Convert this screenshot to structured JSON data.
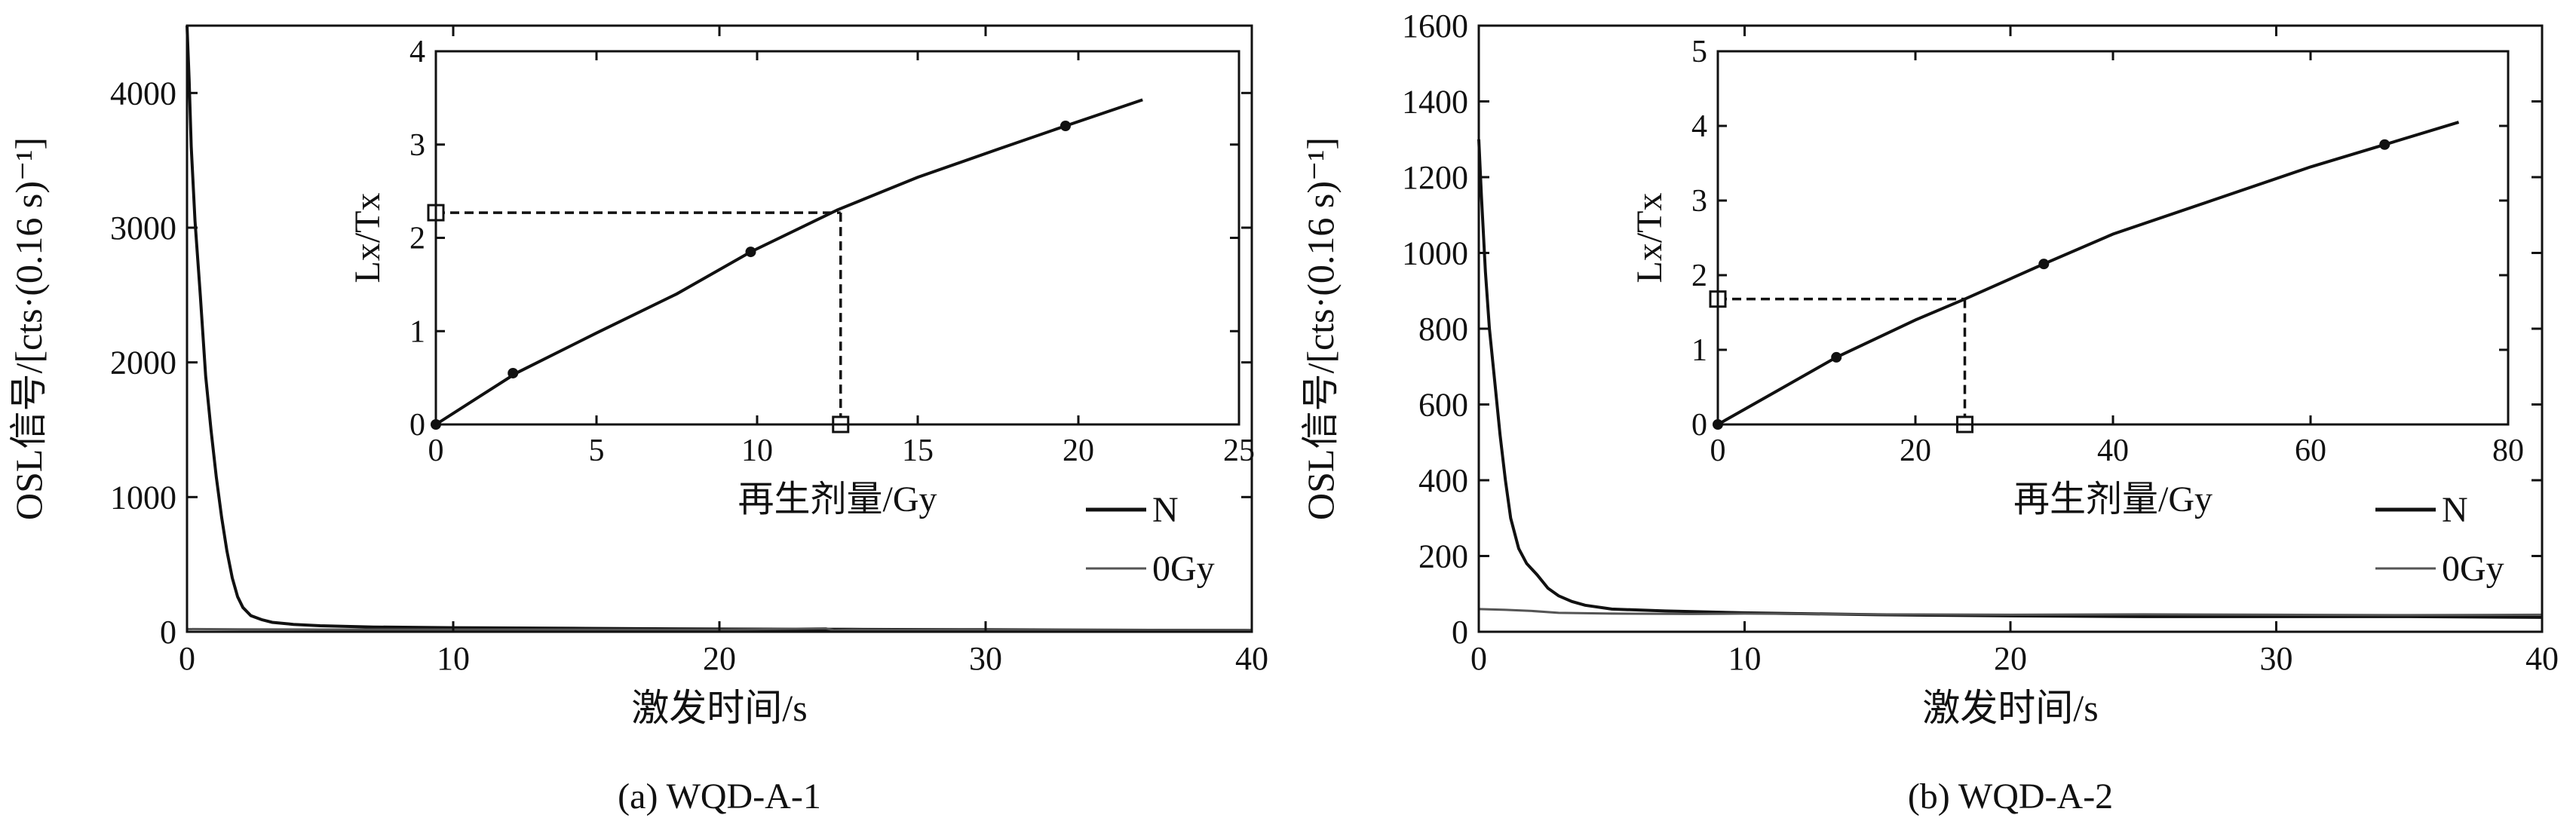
{
  "chart_data": [
    {
      "id": "a",
      "type": "line",
      "caption": "(a) WQD-A-1",
      "xlabel": "激发时间/s",
      "ylabel": "OSL信号/[cts·(0.16 s)⁻¹]",
      "xlim": [
        0,
        40
      ],
      "ylim": [
        0,
        4500
      ],
      "xticks": [
        0,
        10,
        20,
        30,
        40
      ],
      "yticks": [
        0,
        1000,
        2000,
        3000,
        4000
      ],
      "legend": {
        "position": "bottom-right",
        "entries": [
          "N",
          "0Gy"
        ]
      },
      "series": [
        {
          "name": "N",
          "color": "#111111",
          "points": [
            [
              0,
              4500
            ],
            [
              0.08,
              4100
            ],
            [
              0.16,
              3600
            ],
            [
              0.3,
              3050
            ],
            [
              0.5,
              2500
            ],
            [
              0.7,
              1900
            ],
            [
              0.9,
              1500
            ],
            [
              1.1,
              1150
            ],
            [
              1.3,
              850
            ],
            [
              1.5,
              600
            ],
            [
              1.7,
              400
            ],
            [
              1.9,
              260
            ],
            [
              2.1,
              180
            ],
            [
              2.4,
              120
            ],
            [
              2.8,
              90
            ],
            [
              3.2,
              70
            ],
            [
              4,
              55
            ],
            [
              5,
              45
            ],
            [
              7,
              35
            ],
            [
              10,
              30
            ],
            [
              15,
              25
            ],
            [
              20,
              20
            ],
            [
              25,
              18
            ],
            [
              30,
              15
            ],
            [
              35,
              12
            ],
            [
              40,
              10
            ]
          ]
        },
        {
          "name": "0Gy",
          "color": "#555555",
          "points": [
            [
              0,
              20
            ],
            [
              2,
              18
            ],
            [
              5,
              17
            ],
            [
              10,
              16
            ],
            [
              15,
              16
            ],
            [
              20,
              15
            ],
            [
              24,
              25
            ],
            [
              24.3,
              12
            ],
            [
              25,
              15
            ],
            [
              30,
              14
            ],
            [
              35,
              13
            ],
            [
              40,
              12
            ]
          ]
        }
      ],
      "inset": {
        "xlabel": "再生剂量/Gy",
        "ylabel": "Lx/Tx",
        "xlim": [
          0,
          25
        ],
        "ylim": [
          0,
          4
        ],
        "xticks": [
          0,
          5,
          10,
          15,
          20,
          25
        ],
        "yticks": [
          0,
          1,
          2,
          3,
          4
        ],
        "curve": [
          [
            0,
            0
          ],
          [
            2.5,
            0.55
          ],
          [
            5,
            0.98
          ],
          [
            7.5,
            1.4
          ],
          [
            9.8,
            1.85
          ],
          [
            12.5,
            2.3
          ],
          [
            15,
            2.65
          ],
          [
            17.5,
            2.95
          ],
          [
            19.6,
            3.2
          ],
          [
            22,
            3.48
          ]
        ],
        "points": [
          [
            0,
            0
          ],
          [
            2.4,
            0.55
          ],
          [
            9.8,
            1.85
          ],
          [
            19.6,
            3.2
          ]
        ],
        "de_x": 12.6,
        "de_y": 2.27
      }
    },
    {
      "id": "b",
      "type": "line",
      "caption": "(b) WQD-A-2",
      "xlabel": "激发时间/s",
      "ylabel": "OSL信号/[cts·(0.16 s)⁻¹]",
      "xlim": [
        0,
        40
      ],
      "ylim": [
        0,
        1600
      ],
      "xticks": [
        0,
        10,
        20,
        30,
        40
      ],
      "yticks": [
        0,
        200,
        400,
        600,
        800,
        1000,
        1200,
        1400,
        1600
      ],
      "legend": {
        "position": "bottom-right",
        "entries": [
          "N",
          "0Gy"
        ]
      },
      "series": [
        {
          "name": "N",
          "color": "#111111",
          "points": [
            [
              0,
              1300
            ],
            [
              0.1,
              1150
            ],
            [
              0.25,
              950
            ],
            [
              0.4,
              800
            ],
            [
              0.6,
              660
            ],
            [
              0.8,
              520
            ],
            [
              1.0,
              400
            ],
            [
              1.2,
              300
            ],
            [
              1.5,
              220
            ],
            [
              1.8,
              180
            ],
            [
              2.2,
              150
            ],
            [
              2.6,
              115
            ],
            [
              3.0,
              95
            ],
            [
              3.5,
              80
            ],
            [
              4,
              70
            ],
            [
              5,
              60
            ],
            [
              7,
              55
            ],
            [
              10,
              50
            ],
            [
              15,
              45
            ],
            [
              20,
              42
            ],
            [
              25,
              40
            ],
            [
              30,
              40
            ],
            [
              35,
              40
            ],
            [
              40,
              38
            ]
          ]
        },
        {
          "name": "0Gy",
          "color": "#555555",
          "points": [
            [
              0,
              60
            ],
            [
              1,
              58
            ],
            [
              2,
              55
            ],
            [
              3,
              50
            ],
            [
              5,
              48
            ],
            [
              8,
              47
            ],
            [
              10,
              48
            ],
            [
              15,
              46
            ],
            [
              20,
              45
            ],
            [
              25,
              46
            ],
            [
              30,
              45
            ],
            [
              35,
              44
            ],
            [
              40,
              45
            ]
          ]
        }
      ],
      "inset": {
        "xlabel": "再生剂量/Gy",
        "ylabel": "Lx/Tx",
        "xlim": [
          0,
          80
        ],
        "ylim": [
          0,
          5
        ],
        "xticks": [
          0,
          20,
          40,
          60,
          80
        ],
        "yticks": [
          0,
          1,
          2,
          3,
          4,
          5
        ],
        "curve": [
          [
            0,
            0
          ],
          [
            6,
            0.45
          ],
          [
            12,
            0.9
          ],
          [
            20,
            1.4
          ],
          [
            25,
            1.68
          ],
          [
            33,
            2.15
          ],
          [
            40,
            2.55
          ],
          [
            50,
            3.0
          ],
          [
            60,
            3.45
          ],
          [
            67.5,
            3.75
          ],
          [
            75,
            4.05
          ]
        ],
        "points": [
          [
            0,
            0
          ],
          [
            12,
            0.9
          ],
          [
            33,
            2.15
          ],
          [
            67.5,
            3.75
          ]
        ],
        "de_x": 25,
        "de_y": 1.68
      }
    }
  ]
}
